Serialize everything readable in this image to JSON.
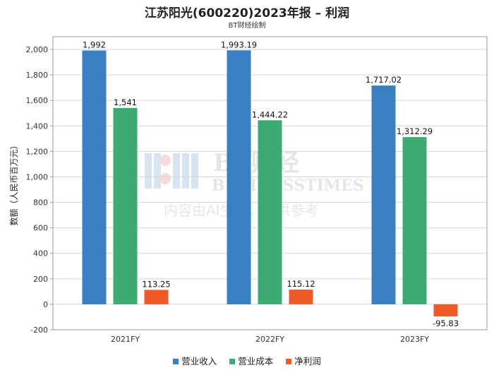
{
  "chart_data": {
    "type": "bar",
    "title": "江苏阳光(600220)2023年报 – 利润",
    "subtitle": "BT财经绘制",
    "ylabel": "数额（人民币百万元）",
    "xlabel": "",
    "categories": [
      "2021FY",
      "2022FY",
      "2023FY"
    ],
    "ylim": [
      -200,
      2100
    ],
    "yticks": [
      -200,
      0,
      200,
      400,
      600,
      800,
      1000,
      1200,
      1400,
      1600,
      1800,
      2000
    ],
    "ytick_labels": [
      "-200",
      "0",
      "200",
      "400",
      "600",
      "800",
      "1,000",
      "1,200",
      "1,400",
      "1,600",
      "1,800",
      "2,000"
    ],
    "series": [
      {
        "name": "营业收入",
        "color": "#3A7FC1",
        "values": [
          1992,
          1993.19,
          1717.02
        ],
        "labels": [
          "1,992",
          "1,993.19",
          "1,717.02"
        ]
      },
      {
        "name": "营业成本",
        "color": "#3DAA72",
        "values": [
          1541,
          1444.22,
          1312.29
        ],
        "labels": [
          "1,541",
          "1,444.22",
          "1,312.29"
        ]
      },
      {
        "name": "净利润",
        "color": "#F05A28",
        "values": [
          113.25,
          115.12,
          -95.83
        ],
        "labels": [
          "113.25",
          "115.12",
          "-95.83"
        ]
      }
    ],
    "legend_position": "bottom",
    "grid": true,
    "watermark": {
      "line1": "BT财经",
      "line2": "BUSINESSTIMES",
      "line3": "内容由AI生成，仅供参考"
    }
  }
}
